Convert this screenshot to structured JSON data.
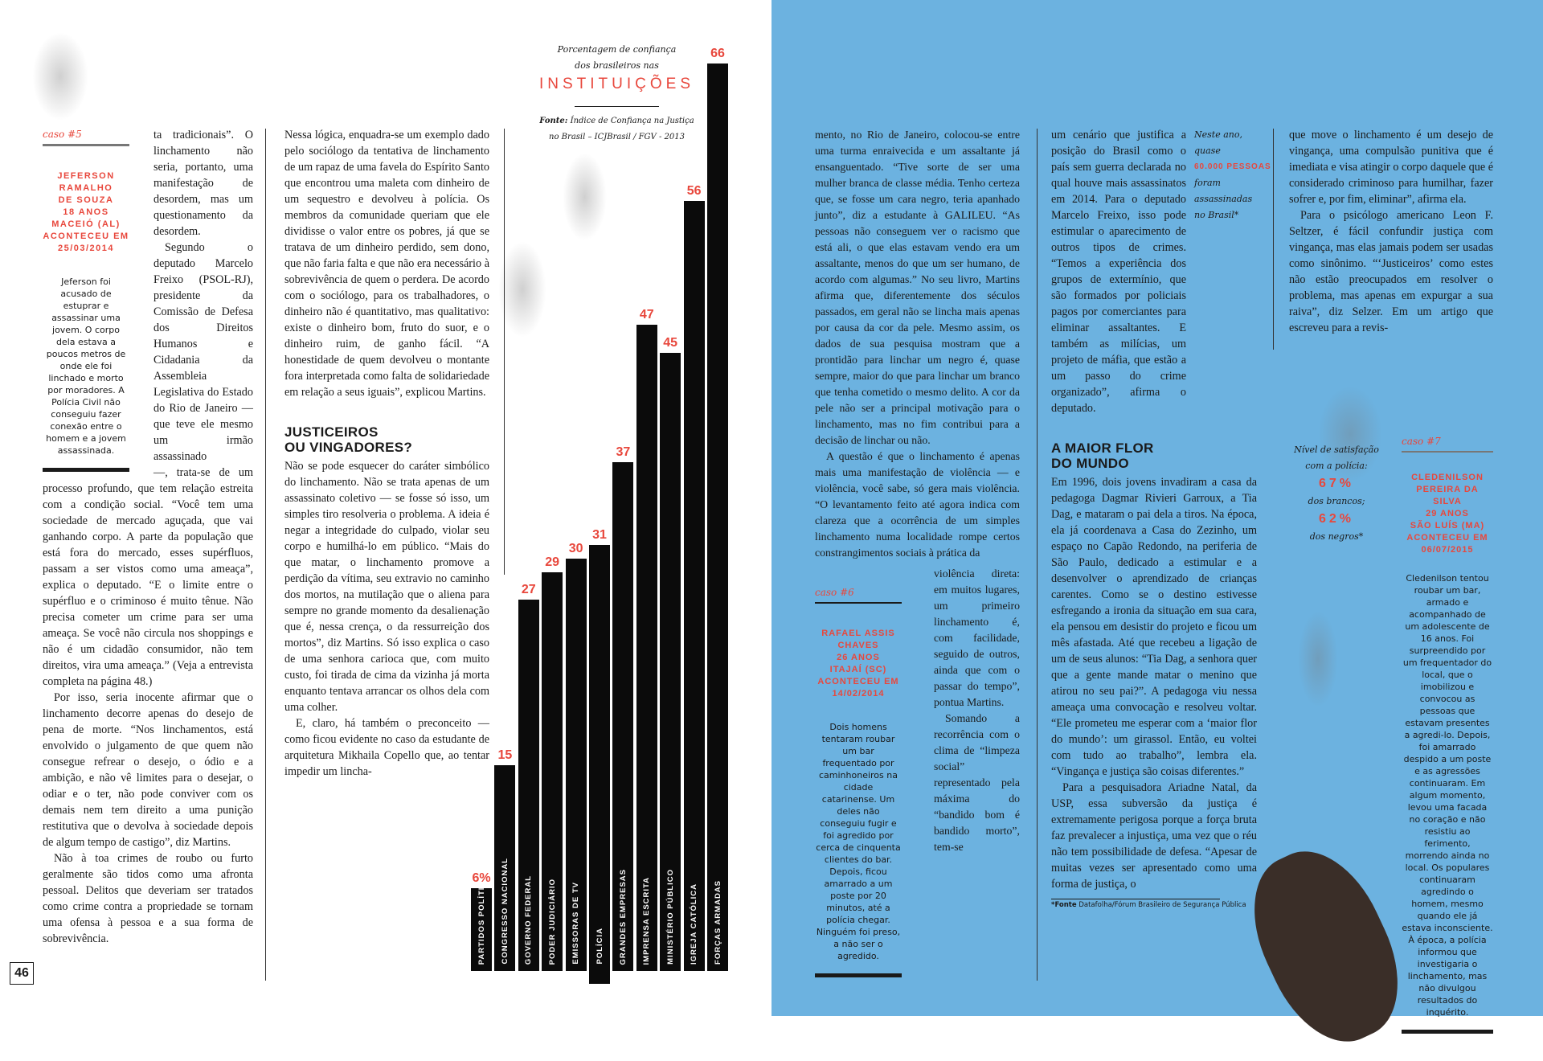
{
  "left_page": {
    "page_number": "46",
    "case5": {
      "kicker": "caso #5",
      "person": "JEFERSON RAMALHO\nDE SOUZA\n18 ANOS\nMACEIÓ (AL)\nACONTECEU EM\n25/03/2014",
      "story": "Jeferson foi acusado de estuprar e assassinar uma jovem. O corpo dela estava a poucos metros de onde ele foi linchado e morto por moradores. A Polícia Civil não conseguiu fazer conexão entre o homem e a jovem assassinada."
    },
    "col1_narrow": [
      "ta tradicionais”. O linchamento não seria, portanto, uma manifestação de desordem, mas um questionamento da desordem.",
      "Segundo o deputado Marcelo Freixo (PSOL-RJ), presidente da Comissão de Defesa dos Direitos Humanos e Cidadania da Assembleia Legislativa do Estado do Rio de Janeiro — que teve ele mesmo um irmão assassinado"
    ],
    "col1_wide": [
      "—, trata-se de um processo profundo, que tem relação estreita com a condição social. “Você tem uma sociedade de mercado aguçada, que vai ganhando corpo. A parte da população que está fora do mercado, esses supérfluos, passam a ser vistos como uma ameaça”, explica o deputado. “E o limite entre o supérfluo e o criminoso é muito tênue. Não precisa cometer um crime para ser uma ameaça. Se você não circula nos shoppings e não é um cidadão consumidor, não tem direitos, vira uma ameaça.” (Veja a entrevista completa na página 48.)",
      "Por isso, seria inocente afirmar que o linchamento decorre apenas do desejo de pena de morte. “Nos linchamentos, está envolvido o julgamento de que quem não consegue refrear o desejo, o ódio e a ambição, e não vê limites para o desejar, o odiar e o ter, não pode conviver com os demais nem tem direito a uma punição restitutiva que o devolva à sociedade depois de algum tempo de castigo”, diz Martins.",
      "Não à toa crimes de roubo ou furto geralmente são tidos como uma afronta pessoal. Delitos que deveriam ser tratados como crime contra a propriedade se tornam uma ofensa à pessoa e a sua forma de sobrevivência."
    ],
    "col2_top": [
      "Nessa lógica, enquadra-se um exemplo dado pelo sociólogo da tentativa de linchamento de um rapaz de uma favela do Espírito Santo que encontrou uma maleta com dinheiro de um sequestro e devolveu à polícia. Os membros da comunidade queriam que ele dividisse o valor entre os pobres, já que se tratava de um dinheiro perdido, sem dono, que não faria falta e que não era necessário à sobrevivência de quem o perdera. De acordo com o sociólogo, para os trabalhadores, o dinheiro não é quantitativo, mas qualitativo: existe o dinheiro bom, fruto do suor, e o dinheiro ruim, de ganho fácil. “A honestidade de quem devolveu o montante fora interpretada como falta de solidariedade em relação a seus iguais”, explicou Martins."
    ],
    "heading": "JUSTICEIROS\nOU VINGADORES?",
    "col2_bottom": [
      "Não se pode esquecer do caráter simbólico do linchamento. Não se trata apenas de um assassinato coletivo — se fosse só isso, um simples tiro resolveria o problema. A ideia é negar a integridade do culpado, violar seu corpo e humilhá-lo em público. “Mais do que matar, o linchamento promove a perdição da vítima, seu extravio no caminho dos mortos, na mutilação que o aliena para sempre no grande momento da desalienação que é, nessa crença, o da ressurreição dos mortos”, diz Martins. Só isso explica o caso de uma senhora carioca que, com muito custo, foi tirada de cima da vizinha já morta enquanto tentava arrancar os olhos dela com uma colher.",
      "E, claro, há também o preconceito — como ficou evidente no caso da estudante de arquitetura Mikhaila Copello que, ao tentar impedir um lincha-"
    ]
  },
  "chart_data": {
    "type": "bar",
    "title_line1": "Porcentagem de confiança",
    "title_line2": "dos brasileiros nas",
    "title_main": "INSTITUIÇÕES",
    "source_label": "Fonte:",
    "source": "Índice de Confiança na Justiça no Brasil – ICJBrasil / FGV - 2013",
    "categories": [
      "PARTIDOS POLÍTICOS",
      "CONGRESSO NACIONAL",
      "GOVERNO FEDERAL",
      "PODER JUDICIÁRIO",
      "EMISSORAS DE TV",
      "POLÍCIA",
      "GRANDES EMPRESAS",
      "IMPRENSA ESCRITA",
      "MINISTÉRIO PÚBLICO",
      "IGREJA CATÓLICA",
      "FORÇAS ARMADAS"
    ],
    "values": [
      6,
      15,
      27,
      29,
      30,
      31,
      37,
      47,
      45,
      56,
      66
    ],
    "value_labels": [
      "6%",
      "15",
      "27",
      "29",
      "30",
      "31",
      "37",
      "47",
      "45",
      "56",
      "66"
    ],
    "bar_color": "#0b0b0b",
    "label_color": "#e8473c"
  },
  "right_page": {
    "background": "#6cb2e0",
    "colA_wide": [
      "mento, no Rio de Janeiro, colocou-se entre uma turma enraivecida e um assaltante já ensanguentado. “Tive sorte de ser uma mulher branca de classe média. Tenho certeza que, se fosse um cara negro, teria apanhado junto”, diz a estudante à GALILEU. “As pessoas não conseguem ver o racismo que está ali, o que elas estavam vendo era um assaltante, menos do que um ser humano, de acordo com algumas.” No seu livro, Martins afirma que, diferentemente dos séculos passados, em geral não se lincha mais apenas por causa da cor da pele. Mesmo assim, os dados de sua pesquisa mostram que a prontidão para linchar um negro é, quase sempre, maior do que para linchar um branco que tenha cometido o mesmo delito. A cor da pele não ser a principal motivação para o linchamento, mas no fim contribui para a decisão de linchar ou não.",
      "A questão é que o linchamento é apenas mais uma manifestação de violência — e violência, você sabe, só gera mais violência. “O levantamento feito até agora indica com clareza que a ocorrência de um simples linchamento numa localidade rompe certos constrangimentos sociais à prática da"
    ],
    "colA_narrow": [
      "violência direta: em muitos lugares, um primeiro linchamento é, com facilidade, seguido de outros, ainda que com o passar do tempo”, pontua Martins.",
      "Somando a recorrência com o clima de “limpeza social” representado pela máxima do “bandido bom é bandido morto”, tem-se"
    ],
    "case6": {
      "kicker": "caso #6",
      "person": "RAFAEL ASSIS CHAVES\n26 ANOS\nITAJAÍ (SC)\nACONTECEU EM\n14/02/2014",
      "story": "Dois homens tentaram roubar um bar frequentado por caminhoneiros na cidade catarinense. Um deles não conseguiu fugir e foi agredido por cerca de cinquenta clientes do bar. Depois, ficou amarrado a um poste por 20 minutos, até a polícia chegar. Ninguém foi preso, a não ser o agredido."
    },
    "colB_top": [
      "um cenário que justifica a posição do Brasil como o país sem guerra declarada no qual houve mais assassinatos em 2014. Para o deputado Marcelo Freixo, isso pode estimular o aparecimento de outros tipos de crimes. “Temos a experiência dos grupos de extermínio, que são formados por policiais pagos por comerciantes para eliminar assaltantes. E também as milícias, um projeto de máfia, que estão a um passo do crime organizado”, afirma o deputado."
    ],
    "sidenote": {
      "line1": "Neste ano,",
      "line2": "quase",
      "highlight": "60.000 PESSOAS",
      "line3": "foram",
      "line4": "assassinadas",
      "line5": "no Brasil*"
    },
    "heading": "A MAIOR FLOR\nDO MUNDO",
    "colB_bottom": [
      "Em 1996, dois jovens invadiram a casa da pedagoga Dagmar Rivieri Garroux, a Tia Dag, e mataram o pai dela a tiros. Na época, ela já coordenava a Casa do Zezinho, um espaço no Capão Redondo, na periferia de São Paulo, dedicado a estimular e a desenvolver o aprendizado de crianças carentes. Como se o destino estivesse esfregando a ironia da situação em sua cara, ela pensou em desistir do projeto e ficou um mês afastada. Até que recebeu a ligação de um de seus alunos: “Tia Dag, a senhora quer que a gente mande matar o menino que atirou no seu pai?”. A pedagoga viu nessa ameaça uma convocação e resolveu voltar. “Ele prometeu me esperar com a ‘maior flor do mundo’: um girassol. Então, eu voltei com tudo ao trabalho”, lembra ela. “Vingança e justiça são coisas diferentes.”",
      "Para a pesquisadora Ariadne Natal, da USP, essa subversão da justiça é extremamente perigosa porque a força bruta faz prevalecer a injustiça, uma vez que o réu não tem possibilidade de defesa. “Apesar de muitas vezes ser apresentado como uma forma de justiça, o"
    ],
    "colC": [
      "que move o linchamento é um desejo de vingança, uma compulsão punitiva que é imediata e visa atingir o corpo daquele que é considerado criminoso para humilhar, fazer sofrer e, por fim, eliminar”, afirma ela.",
      "Para o psicólogo americano Leon F. Seltzer, é fácil confundir justiça com vingança, mas elas jamais podem ser usadas como sinônimo. “‘Justiceiros’ como estes não estão preocupados em resolver o problema, mas apenas em expurgar a sua raiva”, diz Selzer. Em um artigo que escreveu para a revis-"
    ],
    "satisfaction": {
      "line1": "Nível de satisfação",
      "line2": "com a polícia:",
      "white_pct": "67%",
      "white_label": "dos brancos;",
      "black_pct": "62%",
      "black_label": "dos negros*"
    },
    "case7": {
      "kicker": "caso #7",
      "person": "CLEDENILSON\nPEREIRA DA SILVA\n29 ANOS\nSÃO LUÍS (MA)\nACONTECEU EM\n06/07/2015",
      "story": "Cledenilson tentou roubar um bar, armado e acompanhado de um adolescente de 16 anos. Foi surpreendido por um frequentador do local, que o imobilizou e convocou as pessoas que estavam presentes a agredi-lo. Depois, foi amarrado despido a um poste e as agressões continuaram. Em algum momento, levou uma facada no coração e não resistiu ao ferimento, morrendo ainda no local. Os populares continuaram agredindo o homem, mesmo quando ele já estava inconsciente. À época, a polícia informou que investigaria o linchamento, mas não divulgou resultados do inquérito."
    },
    "footnote_label": "*Fonte",
    "footnote": "Datafolha/Fórum Brasileiro de Segurança Pública"
  }
}
